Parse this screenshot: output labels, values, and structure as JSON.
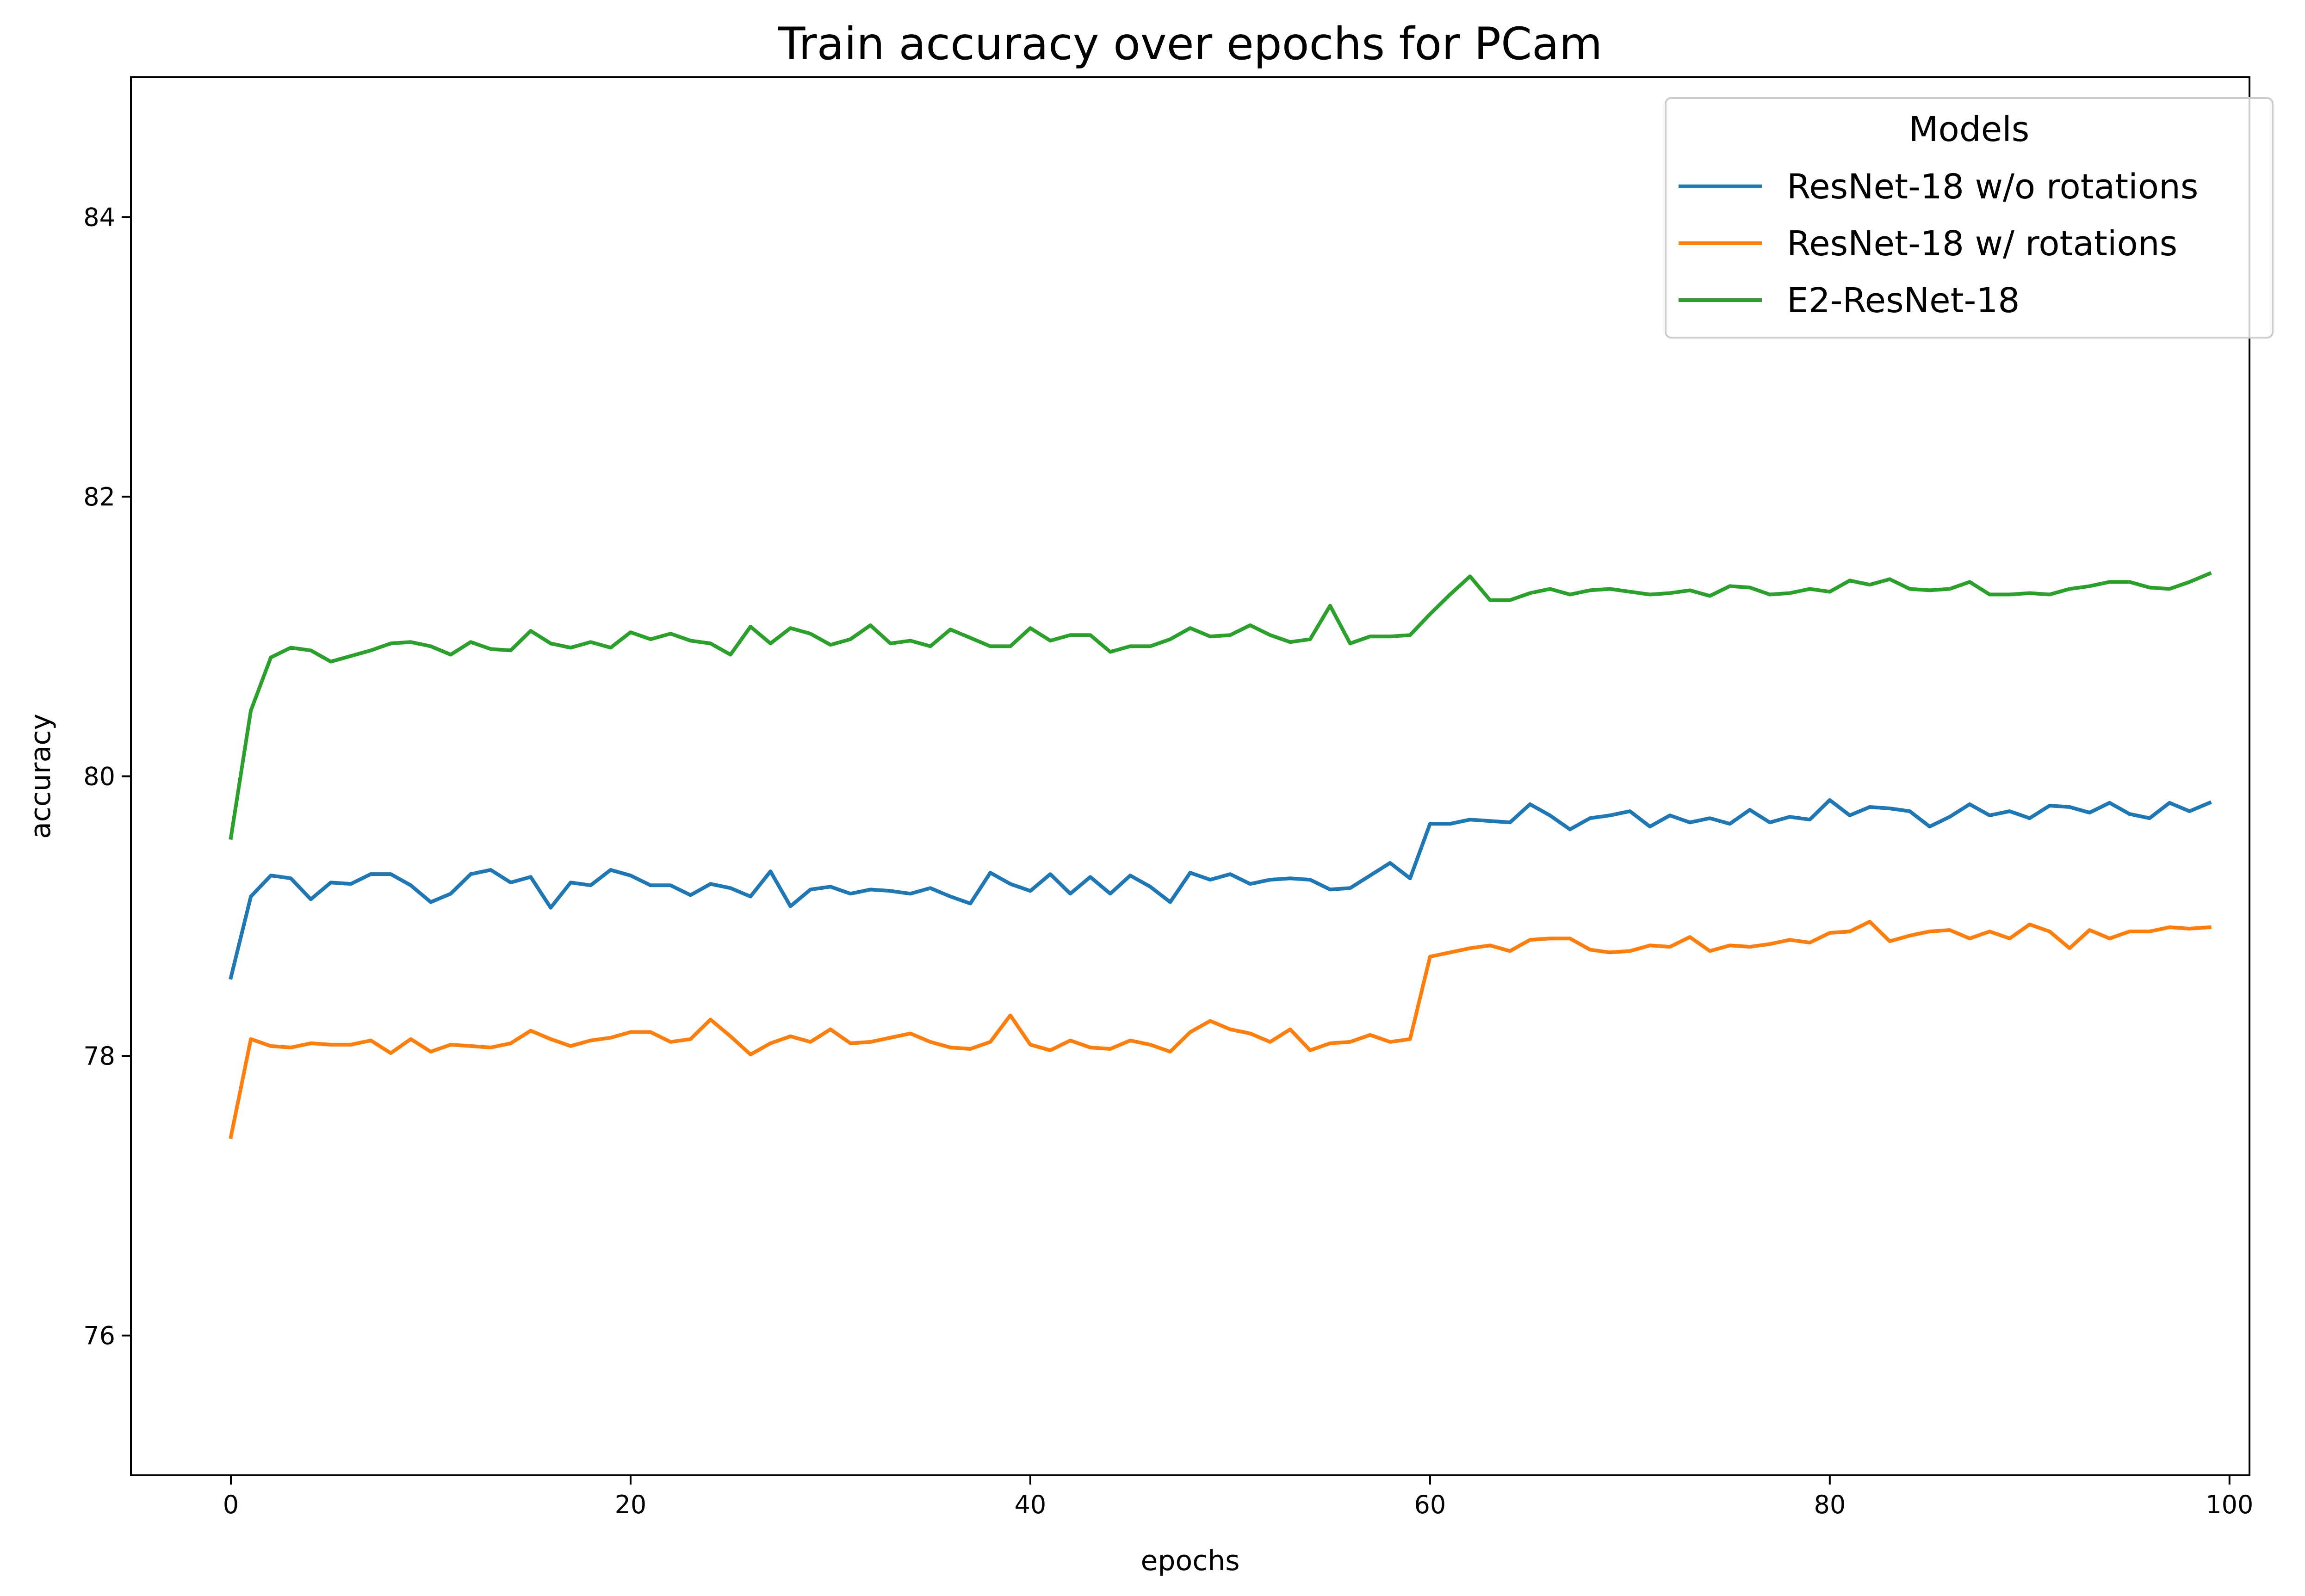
{
  "chart_data": {
    "type": "line",
    "title": "Train accuracy over epochs for PCam",
    "xlabel": "epochs",
    "ylabel": "accuracy",
    "xlim": [
      -5,
      101
    ],
    "ylim": [
      75,
      85
    ],
    "xticks": [
      0,
      20,
      40,
      60,
      80,
      100
    ],
    "yticks": [
      76,
      78,
      80,
      82,
      84
    ],
    "grid": false,
    "legend": {
      "title": "Models",
      "placement": "top-right"
    },
    "x": [
      0,
      1,
      2,
      3,
      4,
      5,
      6,
      7,
      8,
      9,
      10,
      11,
      12,
      13,
      14,
      15,
      16,
      17,
      18,
      19,
      20,
      21,
      22,
      23,
      24,
      25,
      26,
      27,
      28,
      29,
      30,
      31,
      32,
      33,
      34,
      35,
      36,
      37,
      38,
      39,
      40,
      41,
      42,
      43,
      44,
      45,
      46,
      47,
      48,
      49,
      50,
      51,
      52,
      53,
      54,
      55,
      56,
      57,
      58,
      59,
      60,
      61,
      62,
      63,
      64,
      65,
      66,
      67,
      68,
      69,
      70,
      71,
      72,
      73,
      74,
      75,
      76,
      77,
      78,
      79,
      80,
      81,
      82,
      83,
      84,
      85,
      86,
      87,
      88,
      89,
      90,
      91,
      92,
      93,
      94,
      95,
      96,
      97,
      98,
      99
    ],
    "series": [
      {
        "name": "ResNet-18 w/o rotations",
        "color": "#1f77b4",
        "values": [
          78.56,
          79.14,
          79.29,
          79.27,
          79.12,
          79.24,
          79.23,
          79.3,
          79.3,
          79.22,
          79.1,
          79.16,
          79.3,
          79.33,
          79.24,
          79.28,
          79.06,
          79.24,
          79.22,
          79.33,
          79.29,
          79.22,
          79.22,
          79.15,
          79.23,
          79.2,
          79.14,
          79.32,
          79.07,
          79.19,
          79.21,
          79.16,
          79.19,
          79.18,
          79.16,
          79.2,
          79.14,
          79.09,
          79.31,
          79.23,
          79.18,
          79.3,
          79.16,
          79.28,
          79.16,
          79.29,
          79.21,
          79.1,
          79.31,
          79.26,
          79.3,
          79.23,
          79.26,
          79.27,
          79.26,
          79.19,
          79.2,
          79.29,
          79.38,
          79.27,
          79.66,
          79.66,
          79.69,
          79.68,
          79.67,
          79.8,
          79.72,
          79.62,
          79.7,
          79.72,
          79.75,
          79.64,
          79.72,
          79.67,
          79.7,
          79.66,
          79.76,
          79.67,
          79.71,
          79.69,
          79.83,
          79.72,
          79.78,
          79.77,
          79.75,
          79.64,
          79.71,
          79.8,
          79.72,
          79.75,
          79.7,
          79.79,
          79.78,
          79.74,
          79.81,
          79.73,
          79.7,
          79.81,
          79.75,
          79.81
        ]
      },
      {
        "name": "ResNet-18 w/ rotations",
        "color": "#ff7f0e",
        "values": [
          77.42,
          78.12,
          78.07,
          78.06,
          78.09,
          78.08,
          78.08,
          78.11,
          78.02,
          78.12,
          78.03,
          78.08,
          78.07,
          78.06,
          78.09,
          78.18,
          78.12,
          78.07,
          78.11,
          78.13,
          78.17,
          78.17,
          78.1,
          78.12,
          78.26,
          78.14,
          78.01,
          78.09,
          78.14,
          78.1,
          78.19,
          78.09,
          78.1,
          78.13,
          78.16,
          78.1,
          78.06,
          78.05,
          78.1,
          78.29,
          78.08,
          78.04,
          78.11,
          78.06,
          78.05,
          78.11,
          78.08,
          78.03,
          78.17,
          78.25,
          78.19,
          78.16,
          78.1,
          78.19,
          78.04,
          78.09,
          78.1,
          78.15,
          78.1,
          78.12,
          78.71,
          78.74,
          78.77,
          78.79,
          78.75,
          78.83,
          78.84,
          78.84,
          78.76,
          78.74,
          78.75,
          78.79,
          78.78,
          78.85,
          78.75,
          78.79,
          78.78,
          78.8,
          78.83,
          78.81,
          78.88,
          78.89,
          78.96,
          78.82,
          78.86,
          78.89,
          78.9,
          78.84,
          78.89,
          78.84,
          78.94,
          78.89,
          78.77,
          78.9,
          78.84,
          78.89,
          78.89,
          78.92,
          78.91,
          78.92
        ]
      },
      {
        "name": "E2-ResNet-18",
        "color": "#2ca02c",
        "values": [
          79.56,
          80.47,
          80.85,
          80.92,
          80.9,
          80.82,
          80.86,
          80.9,
          80.95,
          80.96,
          80.93,
          80.87,
          80.96,
          80.91,
          80.9,
          81.04,
          80.95,
          80.92,
          80.96,
          80.92,
          81.03,
          80.98,
          81.02,
          80.97,
          80.95,
          80.87,
          81.07,
          80.95,
          81.06,
          81.02,
          80.94,
          80.98,
          81.08,
          80.95,
          80.97,
          80.93,
          81.05,
          80.99,
          80.93,
          80.93,
          81.06,
          80.97,
          81.01,
          81.01,
          80.89,
          80.93,
          80.93,
          80.98,
          81.06,
          81.0,
          81.01,
          81.08,
          81.01,
          80.96,
          80.98,
          81.22,
          80.95,
          81.0,
          81.0,
          81.01,
          81.16,
          81.3,
          81.43,
          81.26,
          81.26,
          81.31,
          81.34,
          81.3,
          81.33,
          81.34,
          81.32,
          81.3,
          81.31,
          81.33,
          81.29,
          81.36,
          81.35,
          81.3,
          81.31,
          81.34,
          81.32,
          81.4,
          81.37,
          81.41,
          81.34,
          81.33,
          81.34,
          81.39,
          81.3,
          81.3,
          81.31,
          81.3,
          81.34,
          81.36,
          81.39,
          81.39,
          81.35,
          81.34,
          81.39,
          81.45
        ]
      }
    ]
  }
}
